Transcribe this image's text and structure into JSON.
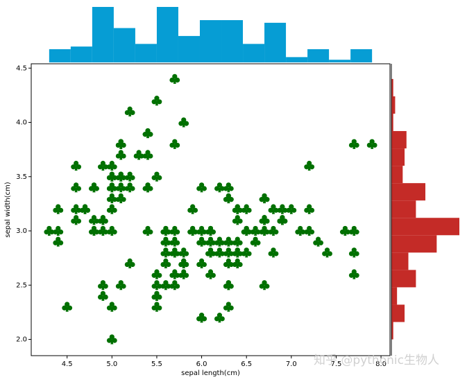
{
  "chart_data": [
    {
      "type": "scatter",
      "color": "#007000",
      "xlabel": "sepal length(cm)",
      "ylabel": "sepal width(cm)",
      "xlim": [
        4.1,
        8.1
      ],
      "ylim": [
        1.85,
        4.54
      ],
      "xticks": [
        4.5,
        {
          "value": 5,
          "label": "5.0"
        },
        5.5,
        {
          "value": 6,
          "label": "6.0"
        },
        6.5,
        {
          "value": 7,
          "label": "7.0"
        },
        7.5,
        {
          "value": 8,
          "label": "8.0"
        }
      ],
      "yticks": [
        {
          "value": 2,
          "label": "2.0"
        },
        2.5,
        {
          "value": 3,
          "label": "3.0"
        },
        3.5,
        {
          "value": 4,
          "label": "4.0"
        },
        4.5
      ],
      "x": [
        5.1,
        4.9,
        4.7,
        4.6,
        5.0,
        5.4,
        4.6,
        5.0,
        4.4,
        4.9,
        5.4,
        4.8,
        4.8,
        4.3,
        5.8,
        5.7,
        5.4,
        5.1,
        5.7,
        5.1,
        5.4,
        5.1,
        4.6,
        5.1,
        4.8,
        5.0,
        5.0,
        5.2,
        5.2,
        4.7,
        4.8,
        5.4,
        5.2,
        5.5,
        4.9,
        5.0,
        5.5,
        4.9,
        4.4,
        5.1,
        5.0,
        4.5,
        4.4,
        5.0,
        5.1,
        4.8,
        5.1,
        4.6,
        5.3,
        5.0,
        7.0,
        6.4,
        6.9,
        5.5,
        6.5,
        5.7,
        6.3,
        4.9,
        6.6,
        5.2,
        5.0,
        5.9,
        6.0,
        6.1,
        5.6,
        6.7,
        5.6,
        5.8,
        6.2,
        5.6,
        5.9,
        6.1,
        6.3,
        6.1,
        6.4,
        6.6,
        6.8,
        6.7,
        6.0,
        5.7,
        5.5,
        5.5,
        5.8,
        6.0,
        5.4,
        6.0,
        6.7,
        6.3,
        5.6,
        5.5,
        5.5,
        6.1,
        5.8,
        5.0,
        5.6,
        5.7,
        5.7,
        6.2,
        5.1,
        5.7,
        6.3,
        5.8,
        7.1,
        6.3,
        6.5,
        7.6,
        4.9,
        7.3,
        6.7,
        7.2,
        6.5,
        6.4,
        6.8,
        5.7,
        5.8,
        6.4,
        6.5,
        7.7,
        7.7,
        6.0,
        6.9,
        5.6,
        7.7,
        6.3,
        6.7,
        7.2,
        6.2,
        6.1,
        6.4,
        7.2,
        7.4,
        7.9,
        6.4,
        6.3,
        6.1,
        7.7,
        6.3,
        6.4,
        6.0,
        6.9,
        6.7,
        6.9,
        5.8,
        6.8,
        6.7,
        6.7,
        6.3,
        6.5,
        6.2,
        5.9
      ],
      "y": [
        3.5,
        3.0,
        3.2,
        3.1,
        3.6,
        3.9,
        3.4,
        3.4,
        2.9,
        3.1,
        3.7,
        3.4,
        3.0,
        3.0,
        4.0,
        4.4,
        3.9,
        3.5,
        3.8,
        3.8,
        3.4,
        3.7,
        3.6,
        3.3,
        3.4,
        3.0,
        3.4,
        3.5,
        3.4,
        3.2,
        3.1,
        3.4,
        4.1,
        4.2,
        3.1,
        3.2,
        3.5,
        3.6,
        3.0,
        3.4,
        3.5,
        2.3,
        3.2,
        3.5,
        3.8,
        3.0,
        3.8,
        3.2,
        3.7,
        3.3,
        3.2,
        3.2,
        3.1,
        2.3,
        2.8,
        2.8,
        3.3,
        2.4,
        2.9,
        2.7,
        2.0,
        3.0,
        2.2,
        2.9,
        2.9,
        3.1,
        3.0,
        2.7,
        2.2,
        2.5,
        3.2,
        2.8,
        2.5,
        2.8,
        2.9,
        3.0,
        2.8,
        3.0,
        2.9,
        2.6,
        2.4,
        2.4,
        2.7,
        2.7,
        3.0,
        3.4,
        3.1,
        2.3,
        3.0,
        2.5,
        2.6,
        3.0,
        2.6,
        2.3,
        2.7,
        3.0,
        2.9,
        2.9,
        2.5,
        2.8,
        3.3,
        2.7,
        3.0,
        2.9,
        3.0,
        3.0,
        2.5,
        2.9,
        2.5,
        3.6,
        3.2,
        2.7,
        3.0,
        2.5,
        2.8,
        3.2,
        3.0,
        3.8,
        2.6,
        2.2,
        3.2,
        2.8,
        2.8,
        2.7,
        3.3,
        3.2,
        2.8,
        3.0,
        2.8,
        3.0,
        2.8,
        3.8,
        2.8,
        2.8,
        2.6,
        3.0,
        3.4,
        3.1,
        3.0,
        3.1,
        3.1,
        3.1,
        2.7,
        3.2,
        3.3,
        3.0,
        2.5,
        3.0,
        3.4,
        3.0
      ]
    },
    {
      "type": "histogram",
      "color": "#069dd4",
      "bins": [
        4.3,
        4.54,
        4.78,
        5.02,
        5.26,
        5.5,
        5.74,
        5.98,
        6.22,
        6.46,
        6.7,
        6.94,
        7.18,
        7.42,
        7.66,
        7.9
      ],
      "values": [
        5,
        6,
        21,
        13,
        7,
        21,
        10,
        16,
        16,
        7,
        15,
        2,
        5,
        1,
        5
      ],
      "ylim": [
        0,
        21
      ]
    },
    {
      "type": "histogram-horizontal",
      "color": "#c42b27",
      "bins": [
        2.0,
        2.16,
        2.32,
        2.48,
        2.64,
        2.8,
        2.96,
        3.12,
        3.28,
        3.44,
        3.6,
        3.76,
        3.92,
        4.08,
        4.24,
        4.4
      ],
      "values": [
        1,
        7,
        3,
        13,
        9,
        24,
        36,
        13,
        18,
        6,
        7,
        8,
        1,
        2,
        1
      ],
      "xlim": [
        0,
        36
      ]
    }
  ],
  "watermark": "知乎 @pythonic生物人"
}
